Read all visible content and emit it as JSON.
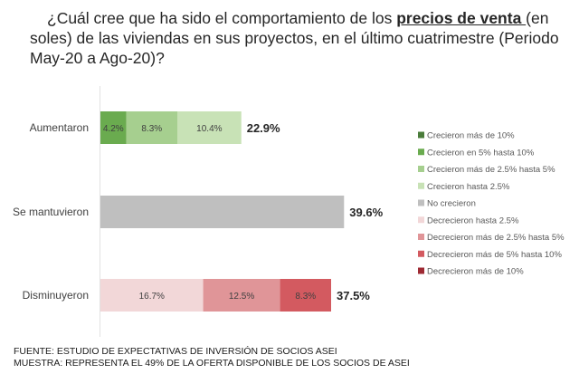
{
  "title": {
    "part1": "¿Cuál cree que ha sido el comportamiento de los ",
    "emphasis": "precios de venta ",
    "part2": "(en soles) de las viviendas en sus proyectos, en el último cuatrimestre (Periodo May-20 a Ago-20)?"
  },
  "chart_data": {
    "type": "bar",
    "orientation": "horizontal",
    "stacked": true,
    "title": "¿Cuál cree que ha sido el comportamiento de los precios de venta (en soles) de las viviendas en sus proyectos, en el último cuatrimestre (Periodo May-20 a Ago-20)?",
    "categories": [
      "Aumentaron",
      "Se mantuvieron",
      "Disminuyeron"
    ],
    "totals": [
      "22.9%",
      "39.6%",
      "37.5%"
    ],
    "total_values": [
      22.9,
      39.6,
      37.5
    ],
    "xlim": [
      0,
      40
    ],
    "grid": false,
    "legend_position": "right",
    "series": [
      {
        "name": "Crecieron más de 10%",
        "color": "#4a7c3a",
        "values": [
          0,
          0,
          0
        ],
        "labels": [
          "",
          "",
          ""
        ]
      },
      {
        "name": "Crecieron en 5% hasta 10%",
        "color": "#6aab4f",
        "values": [
          4.2,
          0,
          0
        ],
        "labels": [
          "4.2%",
          "",
          ""
        ]
      },
      {
        "name": "Crecieron más de 2.5% hasta 5%",
        "color": "#a6cf8f",
        "values": [
          8.3,
          0,
          0
        ],
        "labels": [
          "8.3%",
          "",
          ""
        ]
      },
      {
        "name": "Crecieron hasta 2.5%",
        "color": "#c8e2b6",
        "values": [
          10.4,
          0,
          0
        ],
        "labels": [
          "10.4%",
          "",
          ""
        ]
      },
      {
        "name": "No crecieron",
        "color": "#bfbfbf",
        "values": [
          0,
          39.6,
          0
        ],
        "labels": [
          "",
          "",
          ""
        ]
      },
      {
        "name": "Decrecieron hasta 2.5%",
        "color": "#f2d7d8",
        "values": [
          0,
          0,
          16.7
        ],
        "labels": [
          "",
          "",
          "16.7%"
        ]
      },
      {
        "name": "Decrecieron más de 2.5% hasta 5%",
        "color": "#e09598",
        "values": [
          0,
          0,
          12.5
        ],
        "labels": [
          "",
          "",
          "12.5%"
        ]
      },
      {
        "name": "Decrecieron más de 5% hasta 10%",
        "color": "#d35a60",
        "values": [
          0,
          0,
          8.3
        ],
        "labels": [
          "",
          "",
          "8.3%"
        ]
      },
      {
        "name": "Decrecieron más de 10%",
        "color": "#9e2a33",
        "values": [
          0,
          0,
          0
        ],
        "labels": [
          "",
          "",
          ""
        ]
      }
    ]
  },
  "footer": {
    "source": "FUENTE: ESTUDIO DE EXPECTATIVAS DE INVERSIÓN DE SOCIOS ASEI",
    "sample": "MUESTRA: REPRESENTA EL 49% DE LA OFERTA DISPONIBLE DE LOS SOCIOS DE ASEI"
  }
}
